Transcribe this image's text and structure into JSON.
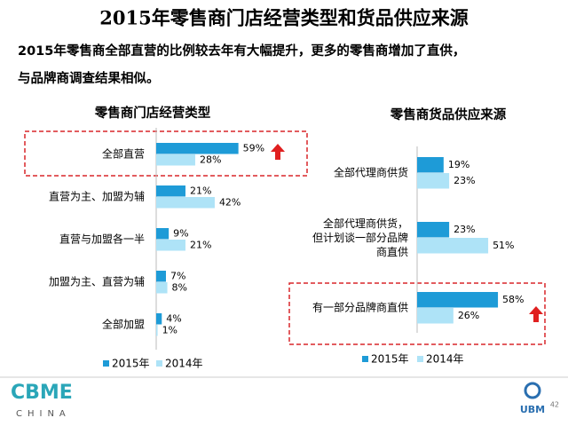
{
  "title": "2015年零售商门店经营类型和货品供应来源",
  "subtitle": [
    "2015年零售商全部直营的比例较去年有大幅提升，更多的零售商增加了直供，",
    "与品牌商调查结果相似。"
  ],
  "chart_data": [
    {
      "type": "bar",
      "orientation": "horizontal",
      "title": "零售商门店经营类型",
      "categories": [
        "全部直营",
        "直营为主、加盟为辅",
        "直营与加盟各一半",
        "加盟为主、直营为辅",
        "全部加盟"
      ],
      "series": [
        {
          "name": "2015年",
          "color": "#1e9bd7",
          "values": [
            59,
            21,
            9,
            7,
            4
          ],
          "value_labels": [
            "59%",
            "21%",
            "9%",
            "7%",
            "4%"
          ]
        },
        {
          "name": "2014年",
          "color": "#aee3f7",
          "values": [
            28,
            42,
            21,
            8,
            1
          ],
          "value_labels": [
            "28%",
            "42%",
            "21%",
            "8%",
            "1%"
          ]
        }
      ],
      "legend": "bottom"
    },
    {
      "type": "bar",
      "orientation": "horizontal",
      "title": "零售商货品供应来源",
      "categories": [
        "全部代理商供货",
        "全部代理商供货，\n但计划谈一部分品牌\n商直供",
        "有一部分品牌商直供"
      ],
      "series": [
        {
          "name": "2015年",
          "color": "#1e9bd7",
          "values": [
            19,
            23,
            58
          ],
          "value_labels": [
            "19%",
            "23%",
            "58%"
          ]
        },
        {
          "name": "2014年",
          "color": "#aee3f7",
          "values": [
            23,
            51,
            26
          ],
          "value_labels": [
            "23%",
            "51%",
            "26%"
          ]
        }
      ],
      "legend": "bottom"
    }
  ],
  "footer": {
    "logo_left": "CBME",
    "logo_left_sub": "CHINA",
    "logo_right": "UBM",
    "page_number": "42"
  }
}
